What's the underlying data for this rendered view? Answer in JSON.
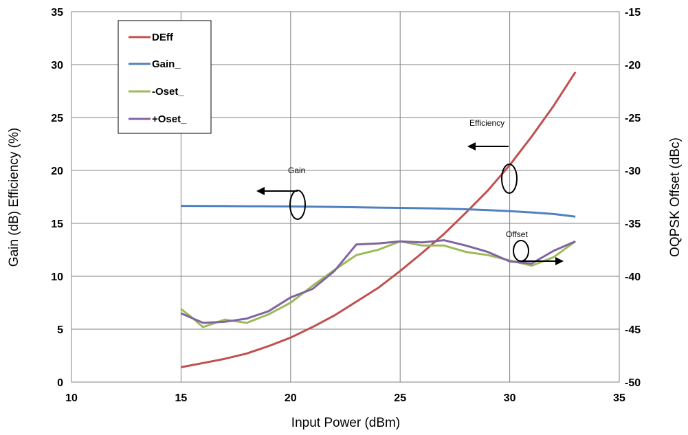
{
  "chart_data": {
    "type": "line",
    "xlabel": "Input Power (dBm)",
    "ylabel": "Gain (dB) Efficiency (%)",
    "y2label": "OQPSK Offset (dBc)",
    "xlim": [
      10,
      35
    ],
    "ylim": [
      0,
      35
    ],
    "y2lim": [
      -50,
      -15
    ],
    "x_ticks": [
      10,
      15,
      20,
      25,
      30,
      35
    ],
    "y_ticks": [
      0,
      5,
      10,
      15,
      20,
      25,
      30,
      35
    ],
    "y2_ticks": [
      -50,
      -45,
      -40,
      -35,
      -30,
      -25,
      -20,
      -15
    ],
    "grid": true,
    "legend_position": "top-left",
    "series": [
      {
        "name": "DEff",
        "axis": "left",
        "color": "#c0504d",
        "x": [
          15,
          16,
          17,
          18,
          19,
          20,
          21,
          22,
          23,
          24,
          25,
          26,
          27,
          28,
          29,
          30,
          31,
          32,
          33
        ],
        "values": [
          1.4,
          1.8,
          2.2,
          2.7,
          3.4,
          4.2,
          5.2,
          6.3,
          7.6,
          8.9,
          10.5,
          12.2,
          14.0,
          16.0,
          18.1,
          20.5,
          23.2,
          26.1,
          29.3
        ]
      },
      {
        "name": "Gain_",
        "axis": "left",
        "color": "#4f81bd",
        "x": [
          15,
          16,
          17,
          18,
          19,
          20,
          21,
          22,
          23,
          24,
          25,
          26,
          27,
          28,
          29,
          30,
          31,
          32,
          33
        ],
        "values": [
          16.65,
          16.64,
          16.63,
          16.62,
          16.61,
          16.6,
          16.58,
          16.55,
          16.52,
          16.49,
          16.46,
          16.43,
          16.39,
          16.33,
          16.25,
          16.15,
          16.03,
          15.88,
          15.63
        ]
      },
      {
        "name": "-Oset_",
        "axis": "right",
        "color": "#9bbb59",
        "x": [
          15,
          15.5,
          16,
          17,
          18,
          19,
          20,
          21,
          22,
          23,
          24,
          25,
          26,
          27,
          28,
          29,
          30,
          31,
          32,
          33
        ],
        "values": [
          -43.1,
          -43.9,
          -44.8,
          -44.1,
          -44.4,
          -43.6,
          -42.5,
          -40.9,
          -39.4,
          -38.0,
          -37.5,
          -36.7,
          -37.1,
          -37.1,
          -37.7,
          -38.0,
          -38.5,
          -39.0,
          -38.2,
          -36.7
        ]
      },
      {
        "name": "+Oset_",
        "axis": "right",
        "color": "#8064a2",
        "x": [
          15,
          16,
          17,
          18,
          19,
          20,
          21,
          22,
          23,
          24,
          25,
          26,
          27,
          28,
          29,
          30,
          31,
          32,
          33
        ],
        "values": [
          -43.5,
          -44.4,
          -44.3,
          -44.0,
          -43.3,
          -42.0,
          -41.2,
          -39.5,
          -37.0,
          -36.9,
          -36.7,
          -36.8,
          -36.6,
          -37.1,
          -37.7,
          -38.6,
          -38.8,
          -37.6,
          -36.7
        ]
      }
    ],
    "annotations": [
      {
        "text": "Efficiency",
        "points_to": "left axis"
      },
      {
        "text": "Gain",
        "points_to": "left axis"
      },
      {
        "text": "Offset",
        "points_to": "right axis"
      }
    ]
  }
}
